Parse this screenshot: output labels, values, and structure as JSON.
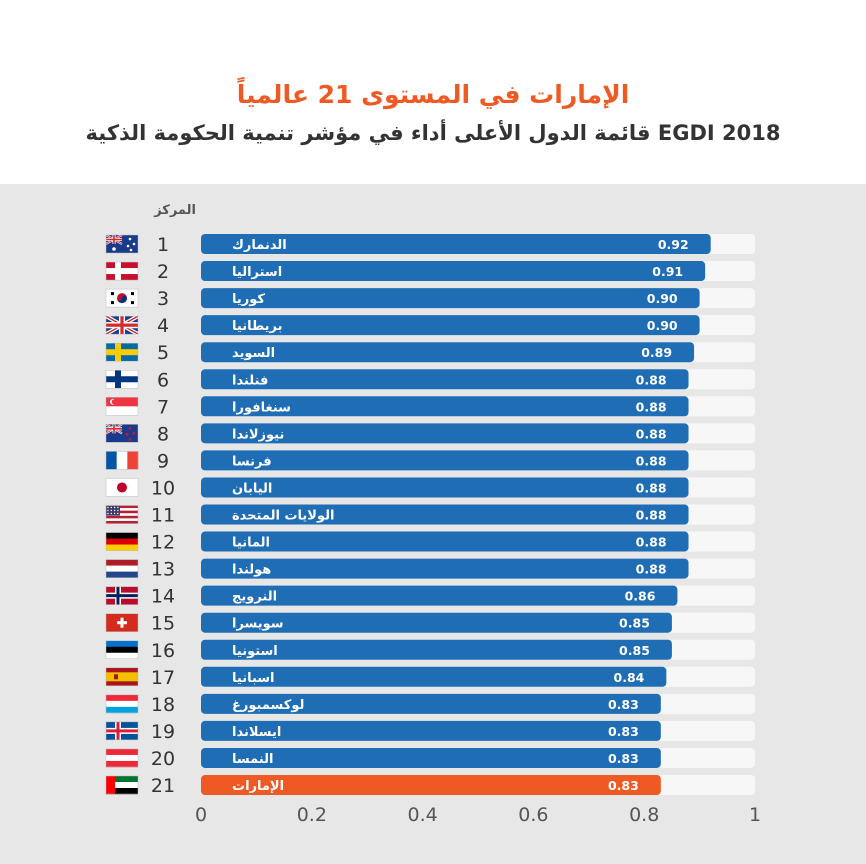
{
  "title": "الإمارات في المستوى 21 عالمياً",
  "subtitle": "قائمة الدول الأعلى أداء في مؤشر تنمية الحكومة الذكية EGDI 2018",
  "rank_header": "المركز",
  "colors": {
    "bar": "#1f6db4",
    "highlight": "#ef5a24",
    "track": "#f7f7f7",
    "panel": "#e7e7e8"
  },
  "chart_data": {
    "type": "bar",
    "orientation": "horizontal",
    "xlim": [
      0,
      1
    ],
    "x_ticks": [
      "0",
      "0.2",
      "0.4",
      "0.6",
      "0.8",
      "1"
    ],
    "rows": [
      {
        "rank": "1",
        "country": "الدنمارك",
        "value": 0.92,
        "label": "0.92",
        "flag": "australia-flag"
      },
      {
        "rank": "2",
        "country": "استراليا",
        "value": 0.91,
        "label": "0.91",
        "flag": "denmark-flag"
      },
      {
        "rank": "3",
        "country": "كوريا",
        "value": 0.9,
        "label": "0.90",
        "flag": "korea-flag"
      },
      {
        "rank": "4",
        "country": "بريطانيا",
        "value": 0.9,
        "label": "0.90",
        "flag": "uk-flag"
      },
      {
        "rank": "5",
        "country": "السويد",
        "value": 0.89,
        "label": "0.89",
        "flag": "sweden-flag"
      },
      {
        "rank": "6",
        "country": "فنلندا",
        "value": 0.88,
        "label": "0.88",
        "flag": "finland-flag"
      },
      {
        "rank": "7",
        "country": "سنغافورا",
        "value": 0.88,
        "label": "0.88",
        "flag": "singapore-flag"
      },
      {
        "rank": "8",
        "country": "نيوزلاندا",
        "value": 0.88,
        "label": "0.88",
        "flag": "new-zealand-flag"
      },
      {
        "rank": "9",
        "country": "فرنسا",
        "value": 0.88,
        "label": "0.88",
        "flag": "france-flag"
      },
      {
        "rank": "10",
        "country": "اليابان",
        "value": 0.88,
        "label": "0.88",
        "flag": "japan-flag"
      },
      {
        "rank": "11",
        "country": "الولايات المتحدة",
        "value": 0.88,
        "label": "0.88",
        "flag": "usa-flag"
      },
      {
        "rank": "12",
        "country": "المانيا",
        "value": 0.88,
        "label": "0.88",
        "flag": "germany-flag"
      },
      {
        "rank": "13",
        "country": "هولندا",
        "value": 0.88,
        "label": "0.88",
        "flag": "netherlands-flag"
      },
      {
        "rank": "14",
        "country": "النرويج",
        "value": 0.86,
        "label": "0.86",
        "flag": "norway-flag"
      },
      {
        "rank": "15",
        "country": "سويسرا",
        "value": 0.85,
        "label": "0.85",
        "flag": "switzerland-flag"
      },
      {
        "rank": "16",
        "country": "استونيا",
        "value": 0.85,
        "label": "0.85",
        "flag": "estonia-flag"
      },
      {
        "rank": "17",
        "country": "اسبانيا",
        "value": 0.84,
        "label": "0.84",
        "flag": "spain-flag"
      },
      {
        "rank": "18",
        "country": "لوكسمبورغ",
        "value": 0.83,
        "label": "0.83",
        "flag": "luxembourg-flag"
      },
      {
        "rank": "19",
        "country": "ايسلاندا",
        "value": 0.83,
        "label": "0.83",
        "flag": "iceland-flag"
      },
      {
        "rank": "20",
        "country": "النمسا",
        "value": 0.83,
        "label": "0.83",
        "flag": "austria-flag"
      },
      {
        "rank": "21",
        "country": "الإمارات",
        "value": 0.83,
        "label": "0.83",
        "flag": "uae-flag",
        "highlight": true
      }
    ]
  }
}
